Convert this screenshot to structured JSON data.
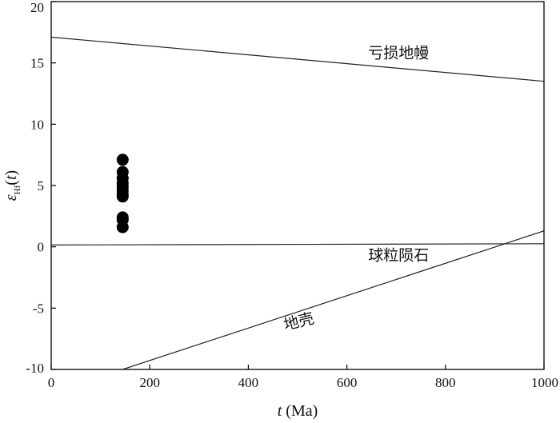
{
  "chart_data": {
    "type": "scatter",
    "xlabel_italic": "t",
    "xlabel_rest": " (Ma)",
    "ylabel_main": "ε",
    "ylabel_sub": "Hf",
    "ylabel_paren_open": "(",
    "ylabel_italic": "t",
    "ylabel_paren_close": ")",
    "xlim": [
      0,
      1000
    ],
    "ylim": [
      -10,
      20
    ],
    "xticks": [
      0,
      200,
      400,
      600,
      800,
      1000
    ],
    "yticks": [
      -10,
      -5,
      0,
      5,
      10,
      15,
      20
    ],
    "xtick_labels": [
      "0",
      "200",
      "400",
      "600",
      "800",
      "1000"
    ],
    "ytick_labels": [
      "-10",
      "-5",
      "0",
      "5",
      "10",
      "15",
      "20"
    ],
    "points": {
      "color": "#000000",
      "x": [
        145,
        145,
        145,
        145,
        145,
        145,
        145,
        145,
        145,
        145,
        145
      ],
      "y": [
        7.1,
        6.1,
        5.6,
        5.2,
        4.9,
        4.6,
        4.3,
        4.1,
        2.4,
        2.2,
        1.6
      ]
    },
    "reference_lines": [
      {
        "label": "亏损地幔",
        "x": [
          0,
          1000
        ],
        "y": [
          17.1,
          13.5
        ]
      },
      {
        "label": "球粒陨石",
        "x": [
          0,
          1000
        ],
        "y": [
          0.15,
          0.25
        ]
      },
      {
        "label": "地壳",
        "x": [
          145,
          1000
        ],
        "y": [
          -10,
          1.3
        ]
      }
    ],
    "annotations": [
      {
        "text": "亏损地幔",
        "x": 705,
        "y": 15.4,
        "rotate": 0
      },
      {
        "text": "球粒陨石",
        "x": 705,
        "y": -1.1,
        "rotate": 0
      },
      {
        "text": "地壳",
        "x": 505,
        "y": -6.5,
        "rotate": -14
      }
    ]
  }
}
